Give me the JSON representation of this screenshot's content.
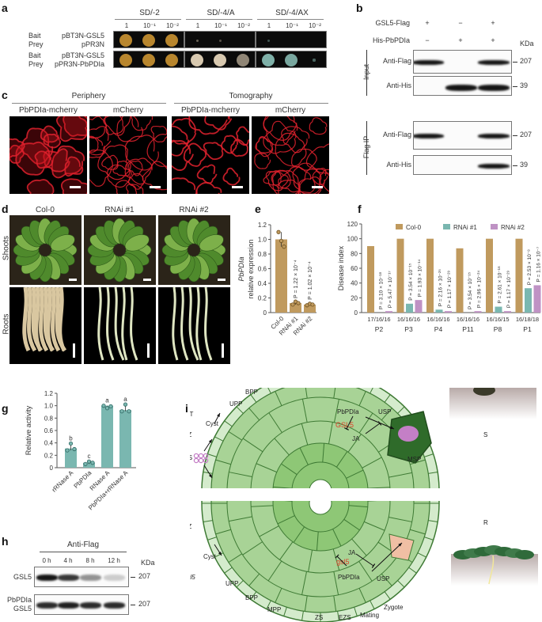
{
  "panels": {
    "a": "a",
    "b": "b",
    "c": "c",
    "d": "d",
    "e": "e",
    "f": "f",
    "g": "g",
    "h": "h",
    "i": "i"
  },
  "a": {
    "media": [
      "SD/-2",
      "SD/-4/A",
      "SD/-4/AX"
    ],
    "dilutions": [
      "1",
      "10⁻¹",
      "10⁻²"
    ],
    "rows": [
      {
        "bait_label": "Bait",
        "prey_label": "Prey",
        "bait": "pBT3N-GSL5",
        "prey": "pPR3N",
        "growth": [
          [
            1,
            1,
            1
          ],
          [
            0.1,
            0.02,
            0
          ],
          [
            0.1,
            0,
            0
          ]
        ]
      },
      {
        "bait_label": "Bait",
        "prey_label": "Prey",
        "bait": "pBT3N-GSL5",
        "prey": "pPR3N-PbPDIa",
        "growth": [
          [
            1,
            1,
            1
          ],
          [
            1,
            0.7,
            0.3
          ],
          [
            1,
            0.6,
            0.2
          ]
        ]
      }
    ],
    "colors": {
      "sd2": "#b8862e",
      "sd4a": "#d8c9b0",
      "sd4ax": "#7fb0a8"
    }
  },
  "b": {
    "conditions": [
      {
        "label": "GSL5-Flag",
        "lanes": [
          "+",
          "−",
          "+"
        ]
      },
      {
        "label": "His-PbPDIa",
        "lanes": [
          "−",
          "+",
          "+"
        ]
      }
    ],
    "kda_label": "KDa",
    "groups": [
      {
        "label": "Input",
        "blots": [
          {
            "label": "Anti-Flag",
            "kda": "207"
          },
          {
            "label": "Anti-His",
            "kda": "39"
          }
        ]
      },
      {
        "label": "Flag IP",
        "blots": [
          {
            "label": "Anti-Flag",
            "kda": "207"
          },
          {
            "label": "Anti-His",
            "kda": "39"
          }
        ]
      }
    ]
  },
  "c": {
    "groups": [
      "Periphery",
      "Tomography"
    ],
    "images": [
      "PbPDIa-mcherry",
      "mCherry",
      "PbPDIa-mcherry",
      "mCherry"
    ]
  },
  "d": {
    "columns": [
      "Col-0",
      "RNAi #1",
      "RNAi #2"
    ],
    "rows": [
      "Shoots",
      "Roots"
    ]
  },
  "chart_data": [
    {
      "panel": "e",
      "type": "bar",
      "categories": [
        "Col-0",
        "RNAi #1",
        "RNAi #2"
      ],
      "values": [
        1.0,
        0.13,
        0.11
      ],
      "points": [
        [
          1.1,
          0.98,
          0.9
        ],
        [
          0.11,
          0.15,
          0.13
        ],
        [
          0.1,
          0.12,
          0.11
        ]
      ],
      "ylabel_italic": "PbPDIa",
      "ylabel": "relative expression",
      "ylim": [
        0,
        1.2
      ],
      "yticks": [
        "0",
        "0.2",
        "0.4",
        "0.6",
        "0.8",
        "1.0",
        "1.2"
      ],
      "annotations": [
        "",
        "P = 1.22 × 10⁻⁴",
        "P = 1.02 × 10⁻⁴"
      ],
      "color": "#c09a5e"
    },
    {
      "panel": "f",
      "type": "bar",
      "ylabel": "Disease index",
      "ylim": [
        0,
        120
      ],
      "yticks": [
        "0",
        "20",
        "40",
        "60",
        "80",
        "100",
        "120"
      ],
      "categories": [
        "P2",
        "P3",
        "P4",
        "P11",
        "P8",
        "P1"
      ],
      "sample_sizes": [
        "17/16/16",
        "16/16/16",
        "16/16/16",
        "16/16/16",
        "16/16/15",
        "16/18/18"
      ],
      "series": [
        {
          "name": "Col-0",
          "color": "#c09a5e",
          "values": [
            90,
            100,
            100,
            87,
            100,
            100
          ]
        },
        {
          "name": "RNAi #1",
          "color": "#7ab7b0",
          "values": [
            0,
            12,
            4,
            0,
            8,
            33
          ]
        },
        {
          "name": "RNAi #2",
          "color": "#bf92c4",
          "values": [
            2,
            17,
            2,
            2,
            2,
            37
          ]
        }
      ],
      "annotations": [
        [
          "P = 3.10 × 10⁻¹⁸",
          "P = 5.47 × 10⁻¹⁷"
        ],
        [
          "P = 3.54 × 10⁻¹⁵",
          "P = 1.93 × 10⁻¹⁴"
        ],
        [
          "P = 2.16 × 10⁻²⁵",
          "P = 1.17 × 10⁻²⁹"
        ],
        [
          "P = 3.54 × 10⁻¹⁵",
          "P = 2.96 × 10⁻²⁴"
        ],
        [
          "P = 2.61 × 10⁻¹⁸",
          "P = 1.17 × 10⁻²⁹"
        ],
        [
          "P = 2.53 × 10⁻⁸",
          "P = 1.16 × 10⁻⁷"
        ]
      ],
      "legend": "top"
    },
    {
      "panel": "g",
      "type": "bar",
      "categories": [
        "rRNase A",
        "PbPDIa",
        "RNase A",
        "PbPDIa+rRNase A"
      ],
      "values": [
        0.31,
        0.08,
        1.0,
        0.93
      ],
      "points": [
        [
          0.28,
          0.39,
          0.3
        ],
        [
          0.06,
          0.1,
          0.08
        ],
        [
          1.0,
          0.96,
          0.99
        ],
        [
          0.91,
          1.02,
          0.91
        ]
      ],
      "letters": [
        "b",
        "c",
        "a",
        "a"
      ],
      "ylabel": "Relative activity",
      "ylim": [
        0,
        1.2
      ],
      "yticks": [
        "0",
        "0.2",
        "0.4",
        "0.6",
        "0.8",
        "1.0",
        "1.2"
      ],
      "color": "#7ab7b0"
    }
  ],
  "h": {
    "title": "Anti-Flag",
    "times": [
      "0 h",
      "4 h",
      "8 h",
      "12 h"
    ],
    "kda_label": "KDa",
    "rows": [
      {
        "label": "GSL5",
        "kda": "207",
        "intensity": [
          1,
          0.85,
          0.45,
          0.2
        ]
      },
      {
        "label": "PbPDIa\nGSL5",
        "label1": "PbPDIa",
        "label2": "GSL5",
        "kda": "207",
        "intensity": [
          0.9,
          0.95,
          0.9,
          0.9
        ]
      }
    ]
  },
  "i": {
    "wt": "WT",
    "gsl5": "gsl5",
    "rs": "RS",
    "pz": "PZ",
    "cyst": "Cyst",
    "upp": "UPP",
    "bpp": "BPP",
    "mpp": "MPP",
    "zs": "ZS",
    "ezs": "EZS",
    "mating": "Mating",
    "zygote": "Zygote",
    "pbpdia": "PbPDIa",
    "usp": "USP",
    "gsl5_gene": "GSL5",
    "gsl5_mut": "gsl5",
    "ja": "JA",
    "msp": "MSP",
    "s": "S",
    "r": "R",
    "colors": {
      "cell": "#a8d396",
      "outer": "#d4ebcc",
      "stroke": "#3e7a34",
      "msp": "#2f6b2a",
      "pathogen": "#c47fc6",
      "highlight": "#f0bfa4",
      "gene": "#e0402a"
    }
  }
}
